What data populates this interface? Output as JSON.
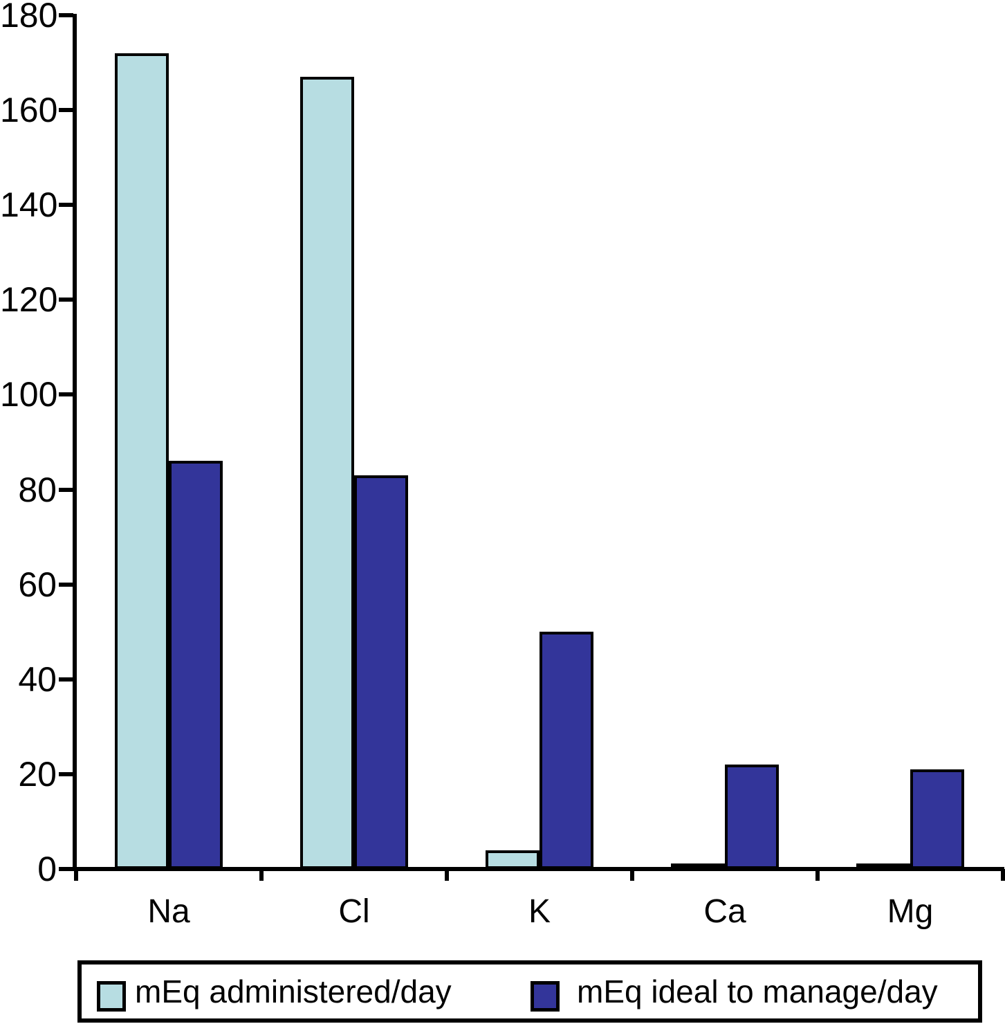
{
  "figure": {
    "background": "#ffffff"
  },
  "chart_data": {
    "type": "bar",
    "title": "",
    "categories": [
      "Na",
      "Cl",
      "K",
      "Ca",
      "Mg"
    ],
    "series": [
      {
        "name": "mEq administered/day",
        "color": "#b7dde2",
        "values": [
          172,
          167,
          4,
          1,
          1
        ]
      },
      {
        "name": "mEq ideal to manage/day",
        "color": "#33359a",
        "values": [
          86,
          83,
          50,
          22,
          21
        ]
      }
    ],
    "xlabel": "",
    "ylabel": "",
    "ylim": [
      0,
      180
    ],
    "yticks": [
      0,
      20,
      40,
      60,
      80,
      100,
      120,
      140,
      160,
      180
    ],
    "grid": false,
    "legend_position": "bottom",
    "bar_outline_color": "#000000",
    "axis_color": "#000000"
  }
}
